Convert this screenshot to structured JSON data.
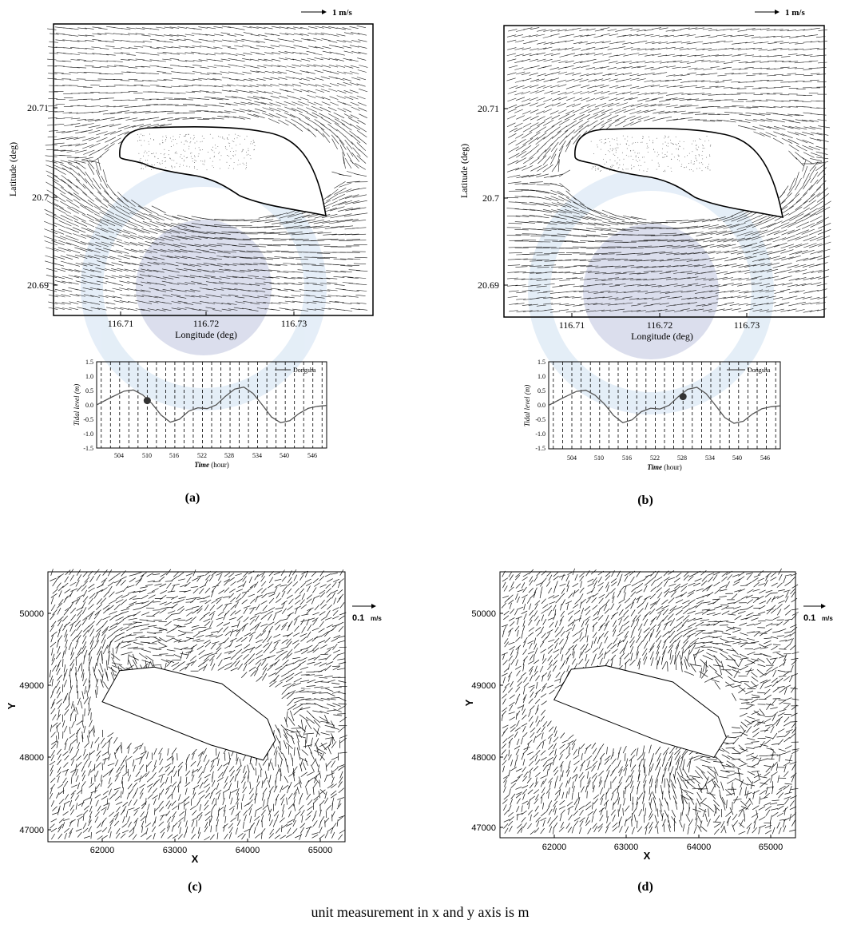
{
  "charts": [
    {
      "id": "a",
      "type": "vector-field",
      "panel_label": "(a)",
      "scale_arrow_label": "1 m/s",
      "ylabel": "Latitude (deg)",
      "xlabel": "Longitude (deg)",
      "x_ticks": [
        "116.71",
        "116.72",
        "116.73"
      ],
      "y_ticks": [
        "20.71",
        "20.7",
        "20.69"
      ],
      "x_tick_values": [
        116.71,
        116.72,
        116.73
      ],
      "y_tick_values": [
        20.71,
        20.7,
        20.69
      ],
      "xlim": [
        116.7036,
        116.7377
      ],
      "ylim": [
        20.6865,
        20.7194
      ],
      "flow": "westward flow around island, strongest acceleration along southern shore",
      "inset": {
        "type": "line",
        "ylabel": "Tidal level (m)",
        "xlabel_italic": "Time",
        "xlabel_unit": "(hour)",
        "legend": "Dongsha",
        "x_ticks": [
          "504",
          "510",
          "516",
          "522",
          "528",
          "534",
          "540",
          "546"
        ],
        "x_tick_values": [
          504,
          510,
          516,
          522,
          528,
          534,
          540,
          546
        ],
        "y_ticks": [
          "1.5",
          "1.0",
          "0.5",
          "0.0",
          "-0.5",
          "-1.0",
          "-1.5"
        ],
        "y_tick_values": [
          1.5,
          1.0,
          0.5,
          0.0,
          -0.5,
          -1.0,
          -1.5
        ],
        "xlim": [
          499,
          549
        ],
        "ylim": [
          -1.5,
          1.5
        ],
        "series": [
          {
            "name": "Dongsha",
            "x": [
              499,
              502,
              505,
              507,
              509,
              511,
              513,
              515,
              517,
              519,
              521,
              523,
              525,
              527,
              529,
              531,
              533,
              535,
              537,
              539,
              541,
              543,
              545,
              547,
              549
            ],
            "y": [
              0.0,
              0.25,
              0.48,
              0.52,
              0.35,
              0.05,
              -0.35,
              -0.6,
              -0.5,
              -0.22,
              -0.1,
              -0.13,
              0.0,
              0.3,
              0.55,
              0.62,
              0.4,
              0.0,
              -0.42,
              -0.62,
              -0.55,
              -0.3,
              -0.12,
              -0.05,
              -0.02
            ]
          }
        ],
        "marker": {
          "x": 510,
          "y": 0.15
        }
      }
    },
    {
      "id": "b",
      "type": "vector-field",
      "panel_label": "(b)",
      "scale_arrow_label": "1 m/s",
      "ylabel": "Latitude (deg)",
      "xlabel": "Longitude (deg)",
      "x_ticks": [
        "116.71",
        "116.72",
        "116.73"
      ],
      "y_ticks": [
        "20.71",
        "20.7",
        "20.69"
      ],
      "x_tick_values": [
        116.71,
        116.72,
        116.73
      ],
      "y_tick_values": [
        20.71,
        20.7,
        20.69
      ],
      "xlim": [
        116.7036,
        116.7377
      ],
      "ylim": [
        20.6865,
        20.7194
      ],
      "flow": "eastward flow around island, strongest acceleration along southern shore",
      "inset": {
        "type": "line",
        "ylabel": "Tidal level (m)",
        "xlabel_italic": "Time",
        "xlabel_unit": "(hour)",
        "legend": "Dongsha",
        "x_ticks": [
          "504",
          "510",
          "516",
          "522",
          "528",
          "534",
          "540",
          "546"
        ],
        "x_tick_values": [
          504,
          510,
          516,
          522,
          528,
          534,
          540,
          546
        ],
        "y_ticks": [
          "1.5",
          "1.0",
          "0.5",
          "0.0",
          "-0.5",
          "-1.0",
          "-1.5"
        ],
        "y_tick_values": [
          1.5,
          1.0,
          0.5,
          0.0,
          -0.5,
          -1.0,
          -1.5
        ],
        "xlim": [
          499,
          549
        ],
        "ylim": [
          -1.5,
          1.5
        ],
        "series": [
          {
            "name": "Dongsha",
            "x": [
              499,
              502,
              505,
              507,
              509,
              511,
              513,
              515,
              517,
              519,
              521,
              523,
              525,
              527,
              529,
              531,
              533,
              535,
              537,
              539,
              541,
              543,
              545,
              547,
              549
            ],
            "y": [
              0.0,
              0.25,
              0.48,
              0.52,
              0.35,
              0.05,
              -0.35,
              -0.6,
              -0.5,
              -0.22,
              -0.1,
              -0.13,
              0.0,
              0.3,
              0.55,
              0.62,
              0.4,
              0.0,
              -0.42,
              -0.62,
              -0.55,
              -0.3,
              -0.12,
              -0.05,
              -0.02
            ]
          }
        ],
        "marker": {
          "x": 528,
          "y": 0.3
        }
      }
    },
    {
      "id": "c",
      "type": "vector-field",
      "panel_label": "(c)",
      "scale_arrow_value": "0.1",
      "scale_arrow_unit": "m/s",
      "ylabel": "Y",
      "xlabel": "X",
      "x_ticks": [
        "62000",
        "63000",
        "64000",
        "65000"
      ],
      "y_ticks": [
        "50000",
        "49000",
        "48000",
        "47000"
      ],
      "x_tick_values": [
        62000,
        63000,
        64000,
        65000
      ],
      "y_tick_values": [
        50000,
        49000,
        48000,
        47000
      ],
      "xlim": [
        61250,
        65350
      ],
      "ylim": [
        46860,
        50600
      ],
      "island": [
        [
          62240,
          49230
        ],
        [
          62720,
          49280
        ],
        [
          63650,
          49050
        ],
        [
          64280,
          48560
        ],
        [
          64390,
          48270
        ],
        [
          64220,
          47990
        ],
        [
          63500,
          48200
        ],
        [
          62000,
          48800
        ]
      ],
      "eddies": [
        {
          "x": 62250,
          "y": 49450,
          "side": "west"
        },
        {
          "x": 64650,
          "y": 48600,
          "side": "east-wake"
        }
      ]
    },
    {
      "id": "d",
      "type": "vector-field",
      "panel_label": "(d)",
      "scale_arrow_value": "0.1",
      "scale_arrow_unit": "m/s",
      "ylabel": "Y",
      "xlabel": "X",
      "x_ticks": [
        "62000",
        "63000",
        "64000",
        "65000"
      ],
      "y_ticks": [
        "50000",
        "49000",
        "48000",
        "47000"
      ],
      "x_tick_values": [
        62000,
        63000,
        64000,
        65000
      ],
      "y_tick_values": [
        50000,
        49000,
        48000,
        47000
      ],
      "xlim": [
        61250,
        65350
      ],
      "ylim": [
        46860,
        50600
      ],
      "island": [
        [
          62240,
          49230
        ],
        [
          62720,
          49280
        ],
        [
          63650,
          49050
        ],
        [
          64280,
          48560
        ],
        [
          64390,
          48270
        ],
        [
          64220,
          47990
        ],
        [
          63500,
          48200
        ],
        [
          62000,
          48800
        ]
      ],
      "eddies": [
        {
          "x": 63950,
          "y": 49400,
          "side": "north-east"
        },
        {
          "x": 63900,
          "y": 47800,
          "side": "south"
        }
      ]
    }
  ],
  "caption": "unit measurement in x and y axis is m"
}
